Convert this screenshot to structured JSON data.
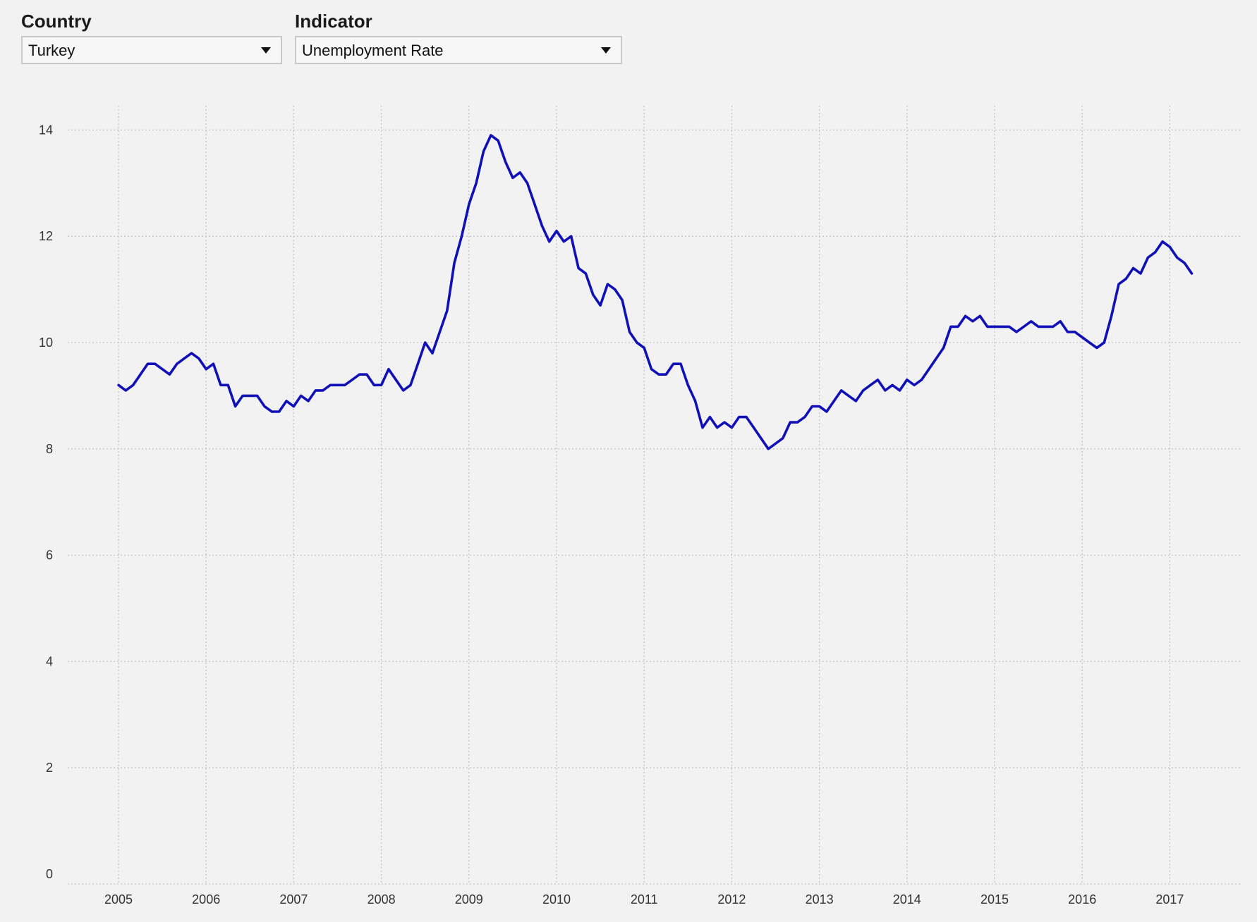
{
  "controls": {
    "country": {
      "label": "Country",
      "value": "Turkey"
    },
    "indicator": {
      "label": "Indicator",
      "value": "Unemployment Rate"
    }
  },
  "colors": {
    "line": "#1010b8",
    "grid": "#c4c4c4",
    "background": "#f2f2f2"
  },
  "icons": {
    "dropdown": "caret-down-icon"
  },
  "chart_data": {
    "type": "line",
    "title": "",
    "xlabel": "",
    "ylabel": "",
    "xlim": [
      2004.4,
      2018.0
    ],
    "ylim": [
      0,
      15
    ],
    "grid": true,
    "x_ticks": [
      2005,
      2006,
      2007,
      2008,
      2009,
      2010,
      2011,
      2012,
      2013,
      2014,
      2015,
      2016,
      2017
    ],
    "x_tick_labels": [
      "2005",
      "2006",
      "2007",
      "2008",
      "2009",
      "2010",
      "2011",
      "2012",
      "2013",
      "2014",
      "2015",
      "2016",
      "2017"
    ],
    "y_ticks": [
      0,
      2,
      4,
      6,
      8,
      10,
      12,
      14
    ],
    "y_tick_labels": [
      "0",
      "2",
      "4",
      "6",
      "8",
      "10",
      "12",
      "14"
    ],
    "series": [
      {
        "x": [
          2005.0,
          2005.083,
          2005.167,
          2005.25,
          2005.333,
          2005.417,
          2005.5,
          2005.583,
          2005.667,
          2005.75,
          2005.833,
          2005.917,
          2006.0,
          2006.083,
          2006.167,
          2006.25,
          2006.333,
          2006.417,
          2006.5,
          2006.583,
          2006.667,
          2006.75,
          2006.833,
          2006.917,
          2007.0,
          2007.083,
          2007.167,
          2007.25,
          2007.333,
          2007.417,
          2007.5,
          2007.583,
          2007.667,
          2007.75,
          2007.833,
          2007.917,
          2008.0,
          2008.083,
          2008.167,
          2008.25,
          2008.333,
          2008.417,
          2008.5,
          2008.583,
          2008.667,
          2008.75,
          2008.833,
          2008.917,
          2009.0,
          2009.083,
          2009.167,
          2009.25,
          2009.333,
          2009.417,
          2009.5,
          2009.583,
          2009.667,
          2009.75,
          2009.833,
          2009.917,
          2010.0,
          2010.083,
          2010.167,
          2010.25,
          2010.333,
          2010.417,
          2010.5,
          2010.583,
          2010.667,
          2010.75,
          2010.833,
          2010.917,
          2011.0,
          2011.083,
          2011.167,
          2011.25,
          2011.333,
          2011.417,
          2011.5,
          2011.583,
          2011.667,
          2011.75,
          2011.833,
          2011.917,
          2012.0,
          2012.083,
          2012.167,
          2012.25,
          2012.333,
          2012.417,
          2012.5,
          2012.583,
          2012.667,
          2012.75,
          2012.833,
          2012.917,
          2013.0,
          2013.083,
          2013.167,
          2013.25,
          2013.333,
          2013.417,
          2013.5,
          2013.583,
          2013.667,
          2013.75,
          2013.833,
          2013.917,
          2014.0,
          2014.083,
          2014.167,
          2014.25,
          2014.333,
          2014.417,
          2014.5,
          2014.583,
          2014.667,
          2014.75,
          2014.833,
          2014.917,
          2015.0,
          2015.083,
          2015.167,
          2015.25,
          2015.333,
          2015.417,
          2015.5,
          2015.583,
          2015.667,
          2015.75,
          2015.833,
          2015.917,
          2016.0,
          2016.083,
          2016.167,
          2016.25,
          2016.333,
          2016.417,
          2016.5,
          2016.583,
          2016.667,
          2016.75,
          2016.833,
          2016.917,
          2017.0,
          2017.083,
          2017.167,
          2017.25
        ],
        "y": [
          9.2,
          9.1,
          9.2,
          9.4,
          9.6,
          9.6,
          9.5,
          9.4,
          9.6,
          9.7,
          9.8,
          9.7,
          9.5,
          9.6,
          9.2,
          9.2,
          8.8,
          9.0,
          9.0,
          9.0,
          8.8,
          8.7,
          8.7,
          8.9,
          8.8,
          9.0,
          8.9,
          9.1,
          9.1,
          9.2,
          9.2,
          9.2,
          9.3,
          9.4,
          9.4,
          9.2,
          9.2,
          9.5,
          9.3,
          9.1,
          9.2,
          9.6,
          10.0,
          9.8,
          10.2,
          10.6,
          11.5,
          12.0,
          12.6,
          13.0,
          13.6,
          13.9,
          13.8,
          13.4,
          13.1,
          13.2,
          13.0,
          12.6,
          12.2,
          11.9,
          12.1,
          11.9,
          12.0,
          11.4,
          11.3,
          10.9,
          10.7,
          11.1,
          11.0,
          10.8,
          10.2,
          10.0,
          9.9,
          9.5,
          9.4,
          9.4,
          9.6,
          9.6,
          9.2,
          8.9,
          8.4,
          8.6,
          8.4,
          8.5,
          8.4,
          8.6,
          8.6,
          8.4,
          8.2,
          8.0,
          8.1,
          8.2,
          8.5,
          8.5,
          8.6,
          8.8,
          8.8,
          8.7,
          8.9,
          9.1,
          9.0,
          8.9,
          9.1,
          9.2,
          9.3,
          9.1,
          9.2,
          9.1,
          9.3,
          9.2,
          9.3,
          9.5,
          9.7,
          9.9,
          10.3,
          10.3,
          10.5,
          10.4,
          10.5,
          10.3,
          10.3,
          10.3,
          10.3,
          10.2,
          10.3,
          10.4,
          10.3,
          10.3,
          10.3,
          10.4,
          10.2,
          10.2,
          10.1,
          10.0,
          9.9,
          10.0,
          10.5,
          11.1,
          11.2,
          11.4,
          11.3,
          11.6,
          11.7,
          11.9,
          11.8,
          11.6,
          11.5,
          11.3
        ]
      }
    ]
  }
}
